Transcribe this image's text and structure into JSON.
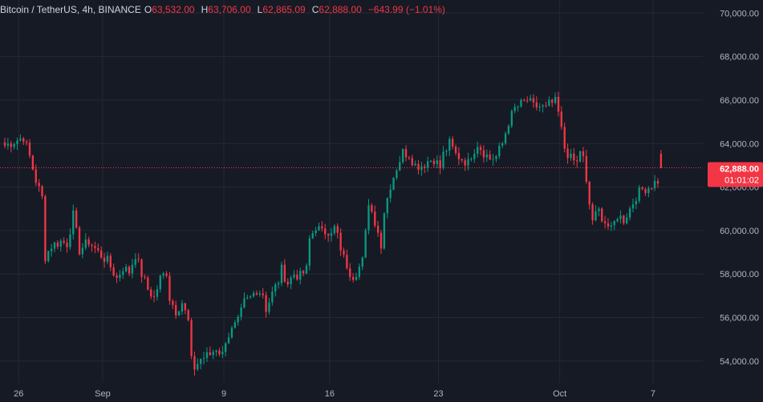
{
  "legend": {
    "symbol": "Bitcoin / TetherUS, 4h, BINANCE",
    "o_label": "O",
    "o_value": "63,532.00",
    "h_label": "H",
    "h_value": "63,706.00",
    "l_label": "L",
    "l_value": "62,865.09",
    "c_label": "C",
    "c_value": "62,888.00",
    "change": "−643.99 (−1.01%)"
  },
  "last_price": {
    "price": "62,888.00",
    "countdown": "01:01:02",
    "value": 62888
  },
  "colors": {
    "background": "#161a25",
    "grid": "#252934",
    "up": "#089981",
    "down": "#f23645",
    "text": "#b2b5be"
  },
  "chart_data": {
    "type": "candlestick",
    "y_axis": {
      "range": [
        53000,
        70600
      ],
      "ticks": [
        {
          "value": 70000,
          "label": "70,000.00"
        },
        {
          "value": 68000,
          "label": "68,000.00"
        },
        {
          "value": 66000,
          "label": "66,000.00"
        },
        {
          "value": 64000,
          "label": "64,000.00"
        },
        {
          "value": 62000,
          "label": "62,000.00"
        },
        {
          "value": 60000,
          "label": "60,000.00"
        },
        {
          "value": 58000,
          "label": "58,000.00"
        },
        {
          "value": 56000,
          "label": "56,000.00"
        },
        {
          "value": 54000,
          "label": "54,000.00"
        }
      ]
    },
    "x_axis": {
      "range": [
        0,
        226
      ],
      "ticks": [
        {
          "index": 6,
          "label": "26"
        },
        {
          "index": 33,
          "label": "Sep"
        },
        {
          "index": 72,
          "label": "9"
        },
        {
          "index": 106,
          "label": "16"
        },
        {
          "index": 141,
          "label": "23"
        },
        {
          "index": 180,
          "label": "Oct"
        },
        {
          "index": 210,
          "label": "7"
        }
      ]
    },
    "grid": true,
    "candle_count": 212,
    "anchors": [
      [
        0,
        63900
      ],
      [
        3,
        64100
      ],
      [
        6,
        64300
      ],
      [
        8,
        63400
      ],
      [
        10,
        62300
      ],
      [
        12,
        61500
      ],
      [
        13,
        58800
      ],
      [
        15,
        59300
      ],
      [
        18,
        59500
      ],
      [
        20,
        59400
      ],
      [
        22,
        60700
      ],
      [
        24,
        59100
      ],
      [
        27,
        59500
      ],
      [
        30,
        59000
      ],
      [
        33,
        58600
      ],
      [
        36,
        57800
      ],
      [
        38,
        58300
      ],
      [
        40,
        58100
      ],
      [
        42,
        58900
      ],
      [
        44,
        58000
      ],
      [
        46,
        57300
      ],
      [
        48,
        56900
      ],
      [
        50,
        57800
      ],
      [
        52,
        58100
      ],
      [
        53,
        56900
      ],
      [
        55,
        56300
      ],
      [
        57,
        56700
      ],
      [
        59,
        55800
      ],
      [
        60,
        54000
      ],
      [
        61,
        53700
      ],
      [
        63,
        54100
      ],
      [
        66,
        54300
      ],
      [
        68,
        54600
      ],
      [
        70,
        54300
      ],
      [
        71,
        55000
      ],
      [
        73,
        55400
      ],
      [
        75,
        55800
      ],
      [
        77,
        56700
      ],
      [
        79,
        56900
      ],
      [
        81,
        57300
      ],
      [
        83,
        57100
      ],
      [
        84,
        56400
      ],
      [
        86,
        57100
      ],
      [
        88,
        57700
      ],
      [
        89,
        58200
      ],
      [
        91,
        57600
      ],
      [
        93,
        58000
      ],
      [
        95,
        57900
      ],
      [
        97,
        58200
      ],
      [
        98,
        59600
      ],
      [
        100,
        60200
      ],
      [
        102,
        59900
      ],
      [
        104,
        60000
      ],
      [
        106,
        60100
      ],
      [
        107,
        59800
      ],
      [
        108,
        59000
      ],
      [
        110,
        58400
      ],
      [
        111,
        57700
      ],
      [
        113,
        58100
      ],
      [
        115,
        59000
      ],
      [
        117,
        61000
      ],
      [
        119,
        60400
      ],
      [
        121,
        59400
      ],
      [
        122,
        60900
      ],
      [
        124,
        62100
      ],
      [
        126,
        62900
      ],
      [
        128,
        63600
      ],
      [
        130,
        63500
      ],
      [
        132,
        63000
      ],
      [
        134,
        63000
      ],
      [
        136,
        63200
      ],
      [
        138,
        63300
      ],
      [
        140,
        62900
      ],
      [
        141,
        63500
      ],
      [
        143,
        64000
      ],
      [
        145,
        63500
      ],
      [
        147,
        63300
      ],
      [
        149,
        63100
      ],
      [
        150,
        63500
      ],
      [
        152,
        64000
      ],
      [
        154,
        63600
      ],
      [
        156,
        63300
      ],
      [
        158,
        63400
      ],
      [
        160,
        64000
      ],
      [
        162,
        65000
      ],
      [
        164,
        65600
      ],
      [
        166,
        65800
      ],
      [
        168,
        66000
      ],
      [
        170,
        65700
      ],
      [
        172,
        65700
      ],
      [
        174,
        65600
      ],
      [
        175,
        65800
      ],
      [
        177,
        65900
      ],
      [
        178,
        65400
      ],
      [
        180,
        63800
      ],
      [
        182,
        63300
      ],
      [
        184,
        63100
      ],
      [
        185,
        63700
      ],
      [
        186,
        63300
      ],
      [
        187,
        62100
      ],
      [
        188,
        61200
      ],
      [
        189,
        60500
      ],
      [
        191,
        60900
      ],
      [
        193,
        60400
      ],
      [
        195,
        60000
      ],
      [
        197,
        60700
      ],
      [
        199,
        60500
      ],
      [
        201,
        61000
      ],
      [
        203,
        61600
      ],
      [
        205,
        61900
      ],
      [
        207,
        62000
      ],
      [
        209,
        62200
      ],
      [
        210,
        62300
      ],
      [
        211,
        62888
      ]
    ]
  }
}
